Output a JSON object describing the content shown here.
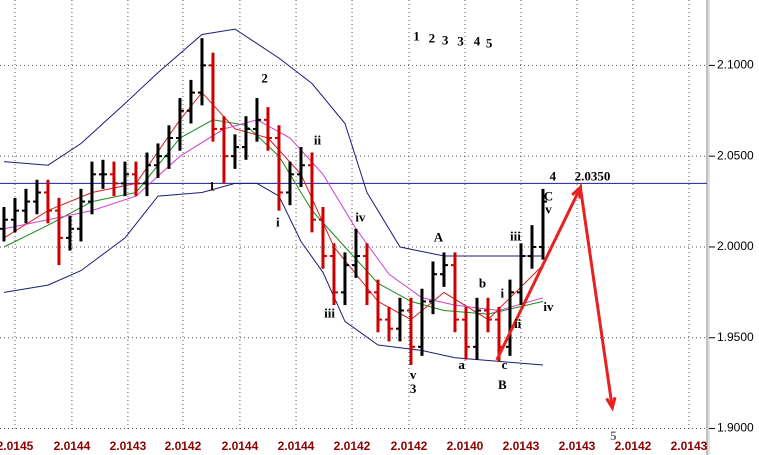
{
  "chart_data": {
    "type": "ohlc",
    "xlim": [
      -0.36,
      63.91
    ],
    "ylim": [
      1.89,
      2.136
    ],
    "yticks": [
      {
        "value": 2.1,
        "label": "2.1000"
      },
      {
        "value": 2.05,
        "label": "2.0500"
      },
      {
        "value": 2.0,
        "label": "2.0000"
      },
      {
        "value": 1.95,
        "label": "1.9500"
      },
      {
        "value": 1.9,
        "label": "1.9000"
      }
    ],
    "xticks": [
      {
        "value": 1,
        "label": "2.0145"
      },
      {
        "value": 6.18,
        "label": "2.0144"
      },
      {
        "value": 11.27,
        "label": "2.0143"
      },
      {
        "value": 16.27,
        "label": "2.0142"
      },
      {
        "value": 21.45,
        "label": "2.0144"
      },
      {
        "value": 26.55,
        "label": "2.0144"
      },
      {
        "value": 31.64,
        "label": "2.0142"
      },
      {
        "value": 36.82,
        "label": "2.0142"
      },
      {
        "value": 41.91,
        "label": "2.0140"
      },
      {
        "value": 47,
        "label": "2.0143"
      },
      {
        "value": 52.09,
        "label": "2.0143"
      },
      {
        "value": 57.18,
        "label": "2.0142"
      },
      {
        "value": 62.27,
        "label": "2.0143"
      }
    ],
    "grid": true,
    "up_color": "#000000",
    "down_color": "#cc0000",
    "open": [
      2.01,
      2.015,
      2.02,
      2.025,
      2.03,
      2.02,
      2.005,
      2.01,
      2.025,
      2.04,
      2.04,
      2.035,
      2.04,
      2.035,
      2.045,
      2.05,
      2.06,
      2.075,
      2.085,
      2.1,
      2.065,
      2.05,
      2.055,
      2.065,
      2.07,
      2.06,
      2.03,
      2.04,
      2.045,
      2.015,
      1.995,
      1.975,
      1.99,
      1.995,
      1.975,
      1.96,
      1.955,
      1.965,
      1.945,
      1.97,
      1.985,
      1.99,
      1.96,
      1.945,
      1.965,
      1.96,
      1.945,
      1.975,
      1.995,
      2.0
    ],
    "high": [
      2.022,
      2.027,
      2.032,
      2.037,
      2.037,
      2.027,
      2.017,
      2.032,
      2.047,
      2.048,
      2.047,
      2.047,
      2.047,
      2.052,
      2.057,
      2.067,
      2.082,
      2.092,
      2.115,
      2.107,
      2.072,
      2.062,
      2.072,
      2.082,
      2.077,
      2.067,
      2.047,
      2.055,
      2.052,
      2.022,
      2.002,
      1.997,
      2.01,
      2.002,
      1.982,
      1.967,
      1.972,
      1.972,
      1.977,
      1.992,
      1.997,
      1.997,
      1.967,
      1.972,
      1.972,
      1.967,
      1.982,
      2.002,
      2.012,
      2.032
    ],
    "low": [
      2.003,
      2.008,
      2.013,
      2.018,
      2.013,
      1.99,
      1.998,
      2.003,
      2.018,
      2.032,
      2.028,
      2.028,
      2.028,
      2.028,
      2.038,
      2.043,
      2.053,
      2.068,
      2.078,
      2.058,
      2.035,
      2.043,
      2.048,
      2.058,
      2.053,
      2.02,
      2.023,
      2.033,
      2.008,
      1.988,
      1.968,
      1.968,
      1.983,
      1.968,
      1.953,
      1.948,
      1.948,
      1.935,
      1.94,
      1.963,
      1.978,
      1.953,
      1.938,
      1.938,
      1.953,
      1.937,
      1.94,
      1.968,
      1.988,
      1.993
    ],
    "close": [
      2.015,
      2.02,
      2.025,
      2.03,
      2.02,
      2.005,
      2.01,
      2.025,
      2.04,
      2.04,
      2.035,
      2.04,
      2.035,
      2.045,
      2.05,
      2.06,
      2.075,
      2.085,
      2.1,
      2.065,
      2.05,
      2.055,
      2.065,
      2.07,
      2.06,
      2.03,
      2.04,
      2.045,
      2.015,
      1.995,
      1.975,
      1.99,
      1.995,
      1.975,
      1.96,
      1.955,
      1.965,
      1.945,
      1.97,
      1.985,
      1.99,
      1.96,
      1.945,
      1.965,
      1.96,
      1.945,
      1.975,
      1.995,
      2.0,
      2.025
    ],
    "lines": [
      {
        "color": "#1c1c7a",
        "x": [
          0,
          4,
          7,
          11,
          14,
          18,
          21,
          25,
          28,
          31,
          33,
          36,
          40,
          44,
          49
        ],
        "values": [
          2.047,
          2.045,
          2.057,
          2.079,
          2.096,
          2.117,
          2.12,
          2.104,
          2.09,
          2.068,
          2.03,
          2.0,
          1.995,
          1.995,
          1.995
        ]
      },
      {
        "color": "#1c1c7a",
        "x": [
          0,
          4,
          7,
          11,
          14,
          18,
          21,
          23,
          25,
          27,
          29,
          31,
          34,
          38,
          41,
          45,
          49
        ],
        "values": [
          1.975,
          1.979,
          1.987,
          2.005,
          2.028,
          2.03,
          2.035,
          2.035,
          2.028,
          2.003,
          1.986,
          1.959,
          1.946,
          1.943,
          1.939,
          1.937,
          1.935
        ]
      },
      {
        "color": "#1a8a1a",
        "x": [
          0,
          4,
          8,
          12,
          16,
          19,
          22,
          25,
          28,
          31,
          34,
          37,
          40,
          44,
          49
        ],
        "values": [
          2.0,
          2.012,
          2.025,
          2.03,
          2.06,
          2.07,
          2.067,
          2.05,
          2.02,
          2.0,
          1.98,
          1.97,
          1.965,
          1.963,
          1.97
        ]
      },
      {
        "color": "#d42020",
        "x": [
          0,
          4,
          8,
          12,
          16,
          18,
          21,
          24,
          27,
          30,
          34,
          37,
          40,
          44,
          49
        ],
        "values": [
          2.005,
          2.02,
          2.03,
          2.035,
          2.07,
          2.085,
          2.065,
          2.06,
          2.04,
          2.0,
          1.97,
          1.96,
          1.975,
          1.96,
          1.99
        ]
      },
      {
        "color": "#d040d0",
        "x": [
          0,
          4,
          8,
          12,
          16,
          20,
          23,
          26,
          29,
          32,
          35,
          38,
          41,
          45,
          49
        ],
        "values": [
          2.01,
          2.015,
          2.02,
          2.028,
          2.05,
          2.065,
          2.07,
          2.06,
          2.04,
          2.01,
          1.985,
          1.972,
          1.968,
          1.965,
          1.972
        ]
      }
    ],
    "hline": {
      "value": 2.035,
      "color": "#1c1c9a"
    },
    "projection": {
      "color": "#e8201e",
      "x": [
        44.8,
        52.4,
        55.3
      ],
      "values": [
        1.9378,
        2.0327,
        1.9114
      ]
    },
    "annotations": [
      {
        "text": "1",
        "x": 18.9,
        "y": 2.0327
      },
      {
        "text": "2",
        "x": 23.7,
        "y": 2.0923
      },
      {
        "text": "ii",
        "x": 28.5,
        "y": 2.0581
      },
      {
        "text": "i",
        "x": 24.9,
        "y": 2.0129
      },
      {
        "text": "iv",
        "x": 32.4,
        "y": 2.0156
      },
      {
        "text": "iii",
        "x": 29.6,
        "y": 1.9627
      },
      {
        "text": "v",
        "x": 37.2,
        "y": 1.929
      },
      {
        "text": "3",
        "x": 37.2,
        "y": 1.9213
      },
      {
        "text": "A",
        "x": 39.5,
        "y": 2.0046
      },
      {
        "text": "a",
        "x": 41.6,
        "y": 1.9345
      },
      {
        "text": "b",
        "x": 43.5,
        "y": 1.9792
      },
      {
        "text": "i",
        "x": 45.3,
        "y": 1.9737
      },
      {
        "text": "c",
        "x": 45.5,
        "y": 1.9345
      },
      {
        "text": "B",
        "x": 45.3,
        "y": 1.9235
      },
      {
        "text": "ii",
        "x": 46.7,
        "y": 1.9571
      },
      {
        "text": "iii",
        "x": 46.5,
        "y": 2.0051
      },
      {
        "text": "iv",
        "x": 49.5,
        "y": 1.9665
      },
      {
        "text": "C",
        "x": 49.5,
        "y": 2.0272
      },
      {
        "text": "v",
        "x": 49.5,
        "y": 2.02
      },
      {
        "text": "4",
        "x": 49.9,
        "y": 2.0382
      },
      {
        "text": "2.0350",
        "x": 53.5,
        "y": 2.0382
      },
      {
        "text": "5",
        "x": 55.4,
        "y": 1.8953,
        "color": "#666666"
      },
      {
        "text": "1",
        "x": 37.5,
        "y": 2.1154
      },
      {
        "text": "2",
        "x": 38.9,
        "y": 2.1143
      },
      {
        "text": "3",
        "x": 40.1,
        "y": 2.1132
      },
      {
        "text": "3",
        "x": 41.5,
        "y": 2.1127
      },
      {
        "text": "4",
        "x": 43,
        "y": 2.1127
      },
      {
        "text": "5",
        "x": 44.1,
        "y": 2.1116
      }
    ]
  }
}
